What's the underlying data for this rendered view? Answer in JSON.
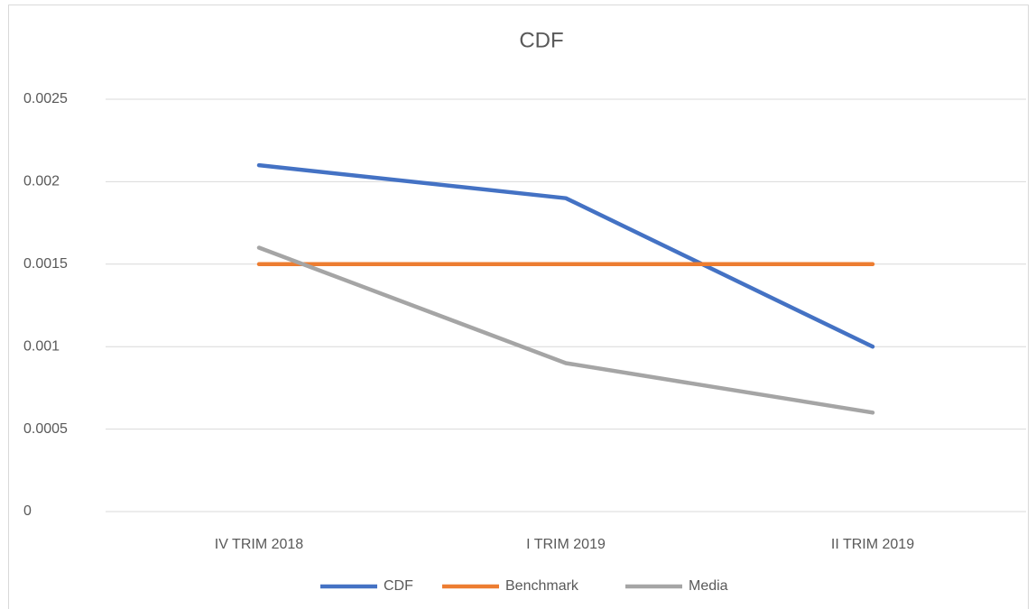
{
  "chart_data": {
    "type": "line",
    "title": "CDF",
    "categories": [
      "IV TRIM 2018",
      "I TRIM 2019",
      "II TRIM 2019"
    ],
    "series": [
      {
        "name": "CDF",
        "color": "#4472c4",
        "values": [
          0.0021,
          0.0019,
          0.001
        ]
      },
      {
        "name": "Benchmark",
        "color": "#ed7d31",
        "values": [
          0.0015,
          0.0015,
          0.0015
        ]
      },
      {
        "name": "Media",
        "color": "#a5a5a5",
        "values": [
          0.0016,
          0.0009,
          0.0006
        ]
      }
    ],
    "ylim": [
      0,
      0.0025
    ],
    "yticks": [
      0,
      0.0005,
      0.001,
      0.0015,
      0.002,
      0.0025
    ],
    "grid": true,
    "legend": "bottom"
  }
}
